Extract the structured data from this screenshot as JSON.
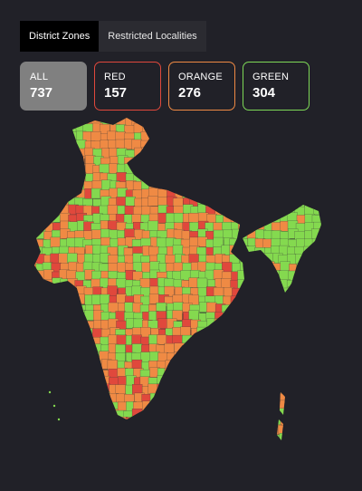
{
  "tabs": [
    {
      "label": "District Zones",
      "active": true
    },
    {
      "label": "Restricted Localities",
      "active": false
    }
  ],
  "zones": [
    {
      "key": "all",
      "label": "ALL",
      "count": "737",
      "color": "#808080"
    },
    {
      "key": "red",
      "label": "RED",
      "count": "157",
      "color": "#e0483c"
    },
    {
      "key": "orange",
      "label": "ORANGE",
      "count": "276",
      "color": "#ef8a44"
    },
    {
      "key": "green",
      "label": "GREEN",
      "count": "304",
      "color": "#7ed957"
    }
  ],
  "map": {
    "colors": {
      "red": "#e0483c",
      "orange": "#ef8a44",
      "green": "#84d94f"
    }
  }
}
